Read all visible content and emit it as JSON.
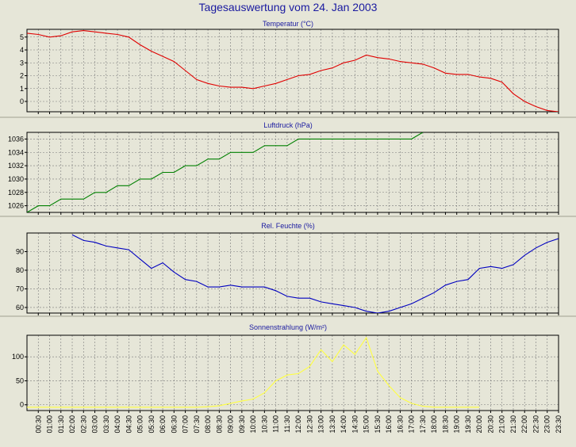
{
  "page": {
    "title": "Tagesauswertung vom 24. Jan 2003"
  },
  "colors": {
    "background": "#e6e6d8",
    "plot_background": "#e6e6d8",
    "grid": "#7a7a7a",
    "title_text": "#1a1aa0",
    "temperature": "#e00000",
    "pressure": "#008000",
    "humidity": "#0000c0",
    "solar": "#ffff40"
  },
  "chart_data": [
    {
      "type": "line",
      "title": "Temperatur (°C)",
      "xlabel": "",
      "ylabel": "",
      "ylim": [
        -0.8,
        5.6
      ],
      "yticks": [
        0,
        1,
        2,
        3,
        4,
        5
      ],
      "grid": true,
      "series": [
        {
          "color": "#e00000",
          "x": [
            0,
            0.5,
            1,
            1.5,
            2,
            2.5,
            3,
            3.5,
            4,
            4.5,
            5,
            5.5,
            6,
            6.5,
            7,
            7.5,
            8,
            8.5,
            9,
            9.5,
            10,
            10.5,
            11,
            11.5,
            12,
            12.5,
            13,
            13.5,
            14,
            14.5,
            15,
            15.5,
            16,
            16.5,
            17,
            17.5,
            18,
            18.5,
            19,
            19.5,
            20,
            20.5,
            21,
            21.5,
            22,
            22.5,
            23,
            23.5
          ],
          "values": [
            5.3,
            5.2,
            5.0,
            5.1,
            5.4,
            5.5,
            5.4,
            5.3,
            5.2,
            5.0,
            4.4,
            3.9,
            3.5,
            3.1,
            2.4,
            1.7,
            1.4,
            1.2,
            1.1,
            1.1,
            1.0,
            1.2,
            1.4,
            1.7,
            2.0,
            2.1,
            2.4,
            2.6,
            3.0,
            3.2,
            3.6,
            3.4,
            3.3,
            3.1,
            3.0,
            2.9,
            2.6,
            2.2,
            2.1,
            2.1,
            1.9,
            1.8,
            1.5,
            0.6,
            0.0,
            -0.4,
            -0.7,
            -0.8
          ]
        }
      ]
    },
    {
      "type": "line",
      "title": "Luftdruck (hPa)",
      "xlabel": "",
      "ylabel": "",
      "ylim": [
        1025,
        1037
      ],
      "yticks": [
        1026,
        1028,
        1030,
        1032,
        1034,
        1036
      ],
      "grid": true,
      "series": [
        {
          "color": "#008000",
          "x": [
            0,
            0.5,
            1,
            1.5,
            2,
            2.5,
            3,
            3.5,
            4,
            4.5,
            5,
            5.5,
            6,
            6.5,
            7,
            7.5,
            8,
            8.5,
            9,
            9.5,
            10,
            10.5,
            11,
            11.5,
            12,
            12.5,
            13,
            13.5,
            14,
            14.5,
            15,
            15.5,
            16,
            16.5,
            17,
            17.5
          ],
          "values": [
            1025,
            1026,
            1026,
            1027,
            1027,
            1027,
            1028,
            1028,
            1029,
            1029,
            1030,
            1030,
            1031,
            1031,
            1032,
            1032,
            1033,
            1033,
            1034,
            1034,
            1034,
            1035,
            1035,
            1035,
            1036,
            1036,
            1036,
            1036,
            1036,
            1036,
            1036,
            1036,
            1036,
            1036,
            1036,
            1037
          ]
        }
      ]
    },
    {
      "type": "line",
      "title": "Rel. Feuchte (%)",
      "xlabel": "",
      "ylabel": "",
      "ylim": [
        57,
        100
      ],
      "yticks": [
        60,
        70,
        80,
        90
      ],
      "grid": true,
      "series": [
        {
          "color": "#0000c0",
          "x": [
            2,
            2.5,
            3,
            3.5,
            4,
            4.5,
            5,
            5.5,
            6,
            6.5,
            7,
            7.5,
            8,
            8.5,
            9,
            9.5,
            10,
            10.5,
            11,
            11.5,
            12,
            12.5,
            13,
            13.5,
            14,
            14.5,
            15,
            15.5,
            16,
            16.5,
            17,
            17.5,
            18,
            18.5,
            19,
            19.5,
            20,
            20.5,
            21,
            21.5,
            22,
            22.5,
            23,
            23.5
          ],
          "values": [
            99,
            96,
            95,
            93,
            92,
            91,
            86,
            81,
            84,
            79,
            75,
            74,
            71,
            71,
            72,
            71,
            71,
            71,
            69,
            66,
            65,
            65,
            63,
            62,
            61,
            60,
            58,
            57,
            58,
            60,
            62,
            65,
            68,
            72,
            74,
            75,
            81,
            82,
            81,
            83,
            88,
            92,
            95,
            97
          ]
        }
      ]
    },
    {
      "type": "line",
      "title": "Sonnenstrahlung (W/m²)",
      "xlabel": "",
      "ylabel": "",
      "ylim": [
        -12,
        145
      ],
      "yticks": [
        0,
        50,
        100
      ],
      "grid": true,
      "series": [
        {
          "color": "#ffff40",
          "x": [
            0,
            1,
            2,
            3,
            4,
            5,
            6,
            7,
            7.5,
            8,
            8.5,
            9,
            9.5,
            10,
            10.5,
            11,
            11.5,
            12,
            12.5,
            13,
            13.5,
            14,
            14.5,
            15,
            15.5,
            16,
            16.5,
            17,
            17.5,
            18,
            18.5,
            19,
            19.5,
            20
          ],
          "values": [
            -5,
            -5,
            -5,
            -5,
            -5,
            -5,
            -5,
            -5,
            -5,
            -4,
            -2,
            3,
            8,
            12,
            25,
            50,
            62,
            65,
            80,
            115,
            90,
            125,
            105,
            140,
            70,
            40,
            15,
            3,
            -3,
            -5,
            -5,
            -5,
            -5,
            -5
          ]
        }
      ]
    }
  ],
  "x_axis": {
    "ticks": [
      "00:30",
      "01:00",
      "01:30",
      "02:00",
      "02:30",
      "03:00",
      "03:30",
      "04:00",
      "04:30",
      "05:00",
      "05:30",
      "06:00",
      "06:30",
      "07:00",
      "07:30",
      "08:00",
      "08:30",
      "09:00",
      "09:30",
      "10:00",
      "10:30",
      "11:00",
      "11:30",
      "12:00",
      "12:30",
      "13:00",
      "13:30",
      "14:00",
      "14:30",
      "15:00",
      "15:30",
      "16:00",
      "16:30",
      "17:00",
      "17:30",
      "18:00",
      "18:30",
      "19:00",
      "19:30",
      "20:00",
      "20:30",
      "21:00",
      "21:30",
      "22:00",
      "22:30",
      "23:00",
      "23:30"
    ]
  }
}
